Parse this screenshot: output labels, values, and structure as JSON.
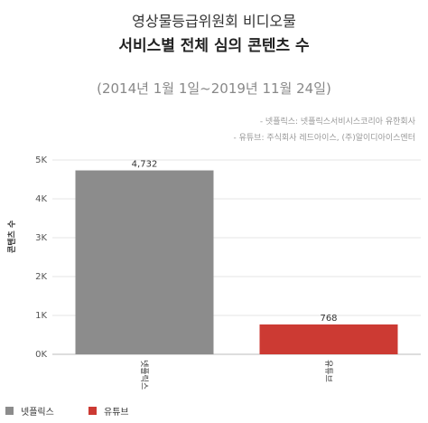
{
  "title": {
    "line1": "영상물등급위원회 비디오물",
    "line2": "서비스별 전체 심의 콘텐츠 수"
  },
  "subtitle": "(2014년 1월 1일~2019년 11월 24일)",
  "sources": [
    "- 넷플릭스: 넷플릭스서비시스코리아 유한회사",
    "- 유튜브: 주식회사 레드아이스, (주)알이디아이스엔터"
  ],
  "legend": [
    {
      "label": "넷플릭스",
      "color": "#8c8c8c"
    },
    {
      "label": "유튜브",
      "color": "#cc3a33"
    }
  ],
  "chart_data": {
    "type": "bar",
    "categories": [
      "넷플릭스",
      "유튜브"
    ],
    "values": [
      4732,
      768
    ],
    "value_labels": [
      "4,732",
      "768"
    ],
    "colors": [
      "#8c8c8c",
      "#cc3a33"
    ],
    "ylabel": "콘텐츠 수",
    "ylim": [
      0,
      5000
    ],
    "yticks": [
      0,
      1000,
      2000,
      3000,
      4000,
      5000
    ],
    "ytick_labels": [
      "0K",
      "1K",
      "2K",
      "3K",
      "4K",
      "5K"
    ],
    "grid": true,
    "legend_position": "bottom-left"
  }
}
